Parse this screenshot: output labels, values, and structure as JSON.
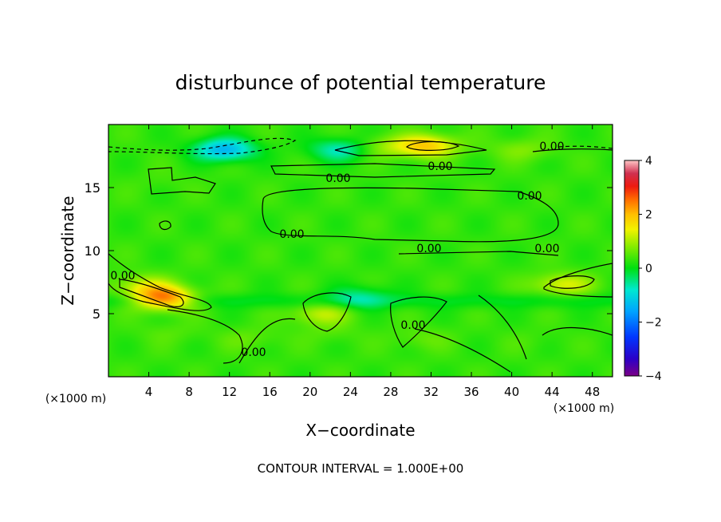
{
  "chart_data": {
    "type": "heatmap",
    "title": "disturbunce of potential temperature",
    "xlabel": "X−coordinate",
    "ylabel": "Z−coordinate",
    "x_unit": "(×1000 m)",
    "z_unit": "(×1000 m)",
    "xlim": [
      0,
      50
    ],
    "ylim": [
      0,
      20
    ],
    "x_ticks": [
      4,
      8,
      12,
      16,
      20,
      24,
      28,
      32,
      36,
      40,
      44,
      48
    ],
    "y_ticks": [
      5,
      10,
      15
    ],
    "colorbar": {
      "range": [
        -4,
        4
      ],
      "ticks": [
        4,
        2,
        0,
        -2,
        -4
      ],
      "tick_labels": [
        "4",
        "2",
        "0",
        "−2",
        "−4"
      ]
    },
    "contour_interval_text": "CONTOUR INTERVAL = 1.000E+00",
    "contour_labels": [
      "0.00",
      "0.00",
      "0.00",
      "0.00",
      "0.00",
      "0.00",
      "0.00",
      "0.00",
      "0.00",
      "0.00"
    ],
    "background_value": 0.3,
    "features": [
      {
        "x": 23,
        "z": 18.0,
        "value": -0.9
      },
      {
        "x": 11.5,
        "z": 18.0,
        "value": -1.6
      },
      {
        "x": 27,
        "z": 18.2,
        "value": 0.9
      },
      {
        "x": 31.5,
        "z": 18.3,
        "value": 2.0
      },
      {
        "x": 41,
        "z": 18.0,
        "value": 0.8
      },
      {
        "x": 3.5,
        "z": 7.2,
        "value": 1.2
      },
      {
        "x": 5.5,
        "z": 6.2,
        "value": 2.8
      },
      {
        "x": 21,
        "z": 5.0,
        "value": 1.2
      },
      {
        "x": 45,
        "z": 7.3,
        "value": 1.4
      },
      {
        "x": 25,
        "z": 6.3,
        "value": -0.5
      },
      {
        "x": 14,
        "z": 3.0,
        "value": 0.6
      },
      {
        "x": 22,
        "z": 3.5,
        "value": 0.5
      },
      {
        "x": 31,
        "z": 3.0,
        "value": 0.6
      },
      {
        "x": 42,
        "z": 2.8,
        "value": 0.4
      },
      {
        "x": 6,
        "z": 3.5,
        "value": 0.5
      },
      {
        "x": 5.5,
        "z": 15.5,
        "value": 0.4
      }
    ]
  }
}
